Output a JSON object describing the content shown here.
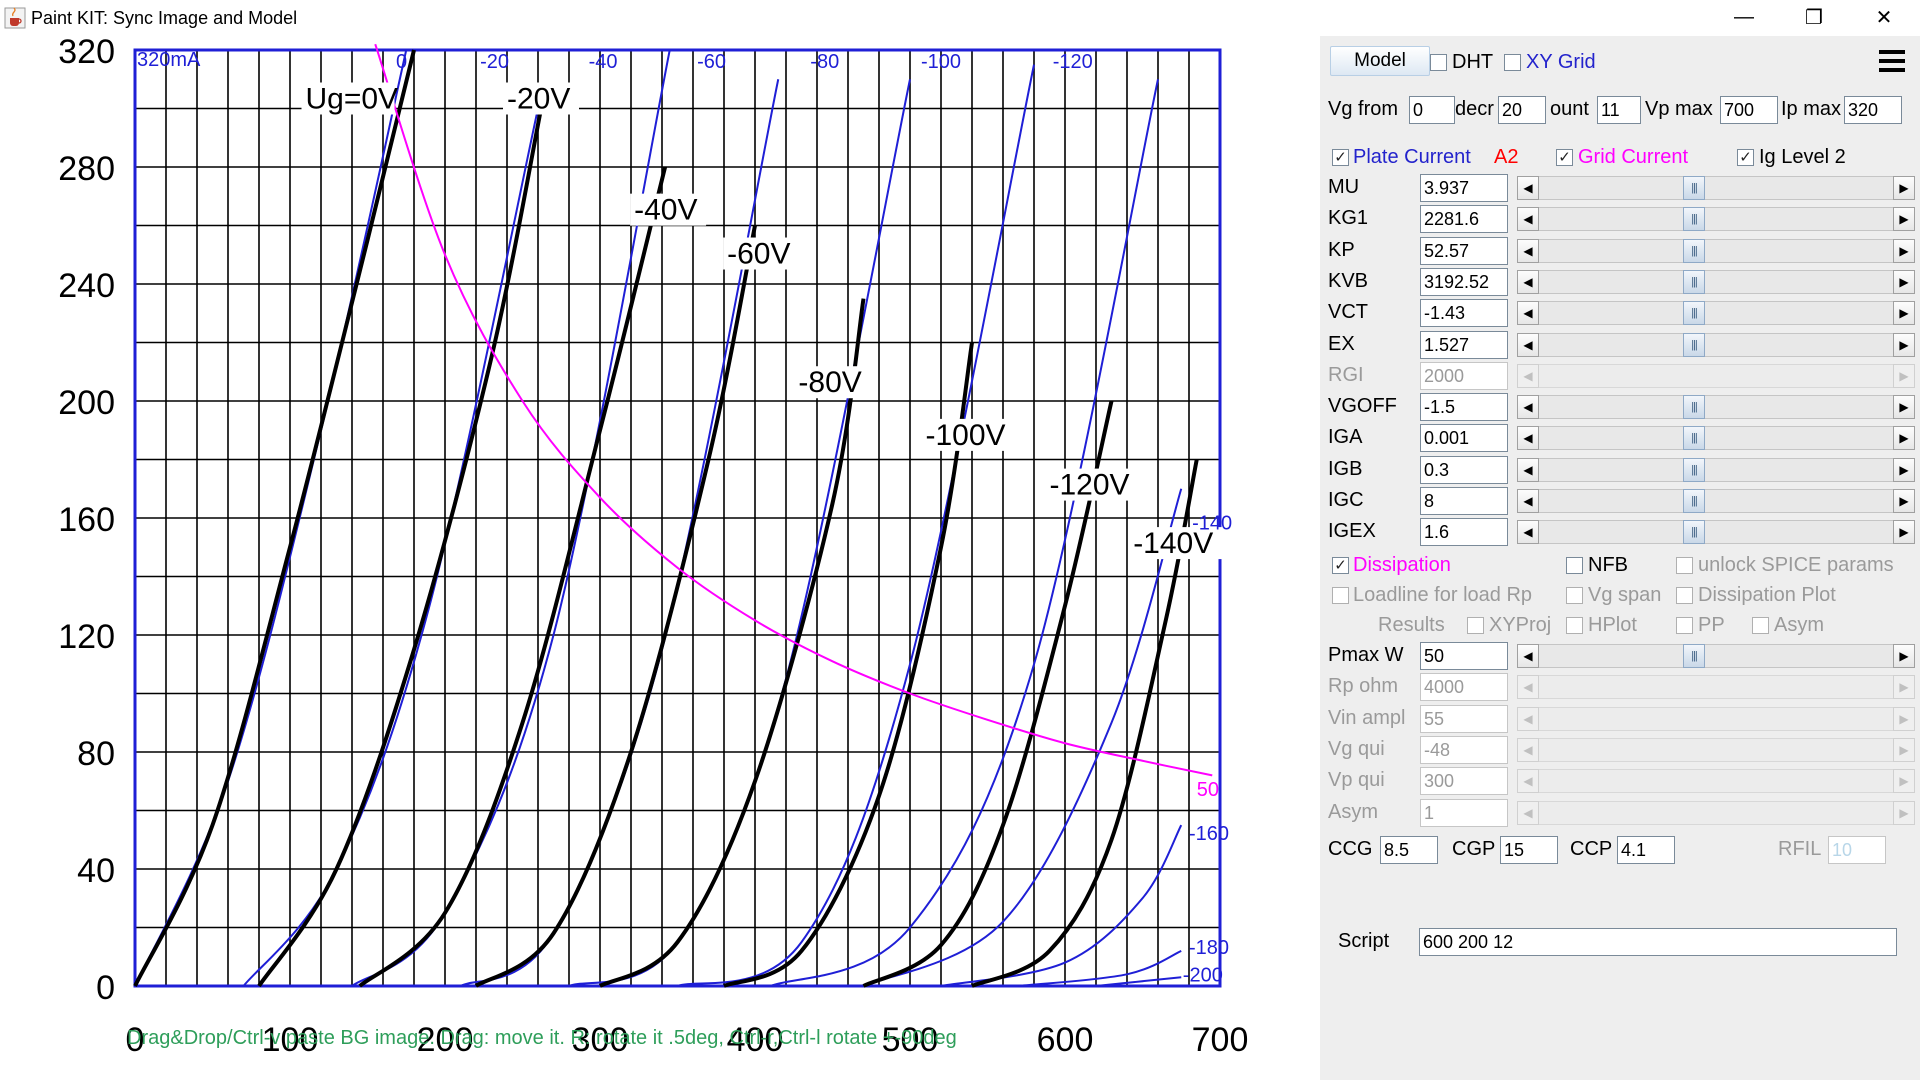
{
  "window": {
    "title": "Paint KIT: Sync Image and Model",
    "minimize": "—",
    "restore": "❐",
    "close": "✕"
  },
  "plot": {
    "corner_label": "320mA",
    "bottom_hint": "Drag&Drop/Ctrl-v paste BG image. Drag: move it. R: rotate it .5deg, Ctrl-r,Ctrl-l rotate +-90deg",
    "x_ticks": [
      "0",
      "100",
      "200",
      "300",
      "400",
      "500",
      "600",
      "700"
    ],
    "y_ticks": [
      "0",
      "40",
      "80",
      "120",
      "160",
      "200",
      "240",
      "280",
      "320"
    ],
    "top_labels": [
      "0",
      "-20",
      "-40",
      "-60",
      "-80",
      "-100",
      "-120"
    ],
    "curve_labels": [
      "Ug=0V",
      "-20V",
      "-40V",
      "-60V",
      "-80V",
      "-100V",
      "-120V",
      "-140V"
    ],
    "right_labels": [
      "-140",
      "50",
      "-160",
      "-180",
      "-200"
    ],
    "colors": {
      "grid": "#000000",
      "model": "#1f1fd6",
      "image": "#000000",
      "dissipation": "#ff00ff",
      "hint": "#2e9e5a"
    }
  },
  "chart_data": {
    "type": "line",
    "title": "",
    "xlabel": "",
    "ylabel": "",
    "xlim": [
      0,
      700
    ],
    "ylim": [
      0,
      320
    ],
    "series": [
      {
        "name": "Ug=0V",
        "vg": 0,
        "x": [
          0,
          50,
          100,
          150,
          180
        ],
        "y": [
          0,
          55,
          150,
          255,
          320
        ]
      },
      {
        "name": "-20V",
        "vg": -20,
        "x": [
          80,
          130,
          180,
          230,
          262
        ],
        "y": [
          0,
          40,
          115,
          215,
          300
        ]
      },
      {
        "name": "-40V",
        "vg": -40,
        "x": [
          145,
          200,
          250,
          300,
          342
        ],
        "y": [
          0,
          25,
          90,
          190,
          280
        ]
      },
      {
        "name": "-60V",
        "vg": -60,
        "x": [
          220,
          270,
          320,
          370,
          400
        ],
        "y": [
          0,
          18,
          80,
          180,
          260
        ]
      },
      {
        "name": "-80V",
        "vg": -80,
        "x": [
          300,
          350,
          400,
          450,
          470
        ],
        "y": [
          0,
          15,
          70,
          165,
          235
        ]
      },
      {
        "name": "-100V",
        "vg": -100,
        "x": [
          380,
          430,
          480,
          520,
          540
        ],
        "y": [
          0,
          12,
          65,
          150,
          220
        ]
      },
      {
        "name": "-120V",
        "vg": -120,
        "x": [
          470,
          520,
          560,
          600,
          630
        ],
        "y": [
          0,
          14,
          55,
          130,
          200
        ]
      },
      {
        "name": "-140V",
        "vg": -140,
        "x": [
          540,
          590,
          630,
          665,
          685
        ],
        "y": [
          0,
          12,
          50,
          125,
          180
        ]
      },
      {
        "name": "50",
        "x": [
          155,
          200,
          250,
          300,
          350,
          400,
          450,
          500,
          550,
          600,
          650,
          695
        ],
        "y": [
          322,
          250,
          200,
          167,
          143,
          125,
          111,
          100,
          91,
          83,
          77,
          72
        ]
      }
    ],
    "model_series": [
      {
        "vg": 0,
        "x": [
          0,
          60,
          120,
          175
        ],
        "y": [
          0,
          70,
          190,
          320
        ]
      },
      {
        "vg": -20,
        "x": [
          70,
          130,
          190,
          260
        ],
        "y": [
          0,
          40,
          130,
          300
        ]
      },
      {
        "vg": -40,
        "x": [
          140,
          200,
          270,
          345
        ],
        "y": [
          0,
          25,
          120,
          320
        ]
      },
      {
        "vg": -60,
        "x": [
          210,
          270,
          340,
          415
        ],
        "y": [
          0,
          18,
          115,
          310
        ]
      },
      {
        "vg": -80,
        "x": [
          280,
          350,
          420,
          500
        ],
        "y": [
          0,
          15,
          105,
          310
        ]
      },
      {
        "vg": -100,
        "x": [
          350,
          430,
          500,
          580
        ],
        "y": [
          0,
          15,
          110,
          315
        ]
      },
      {
        "vg": -120,
        "x": [
          410,
          500,
          580,
          660
        ],
        "y": [
          0,
          20,
          110,
          310
        ]
      },
      {
        "vg": -140,
        "x": [
          470,
          560,
          630,
          675
        ],
        "y": [
          0,
          22,
          90,
          170
        ]
      },
      {
        "vg": -160,
        "x": [
          520,
          600,
          650,
          675
        ],
        "y": [
          0,
          8,
          30,
          55
        ]
      },
      {
        "vg": -180,
        "x": [
          570,
          640,
          675
        ],
        "y": [
          0,
          4,
          12
        ]
      },
      {
        "vg": -200,
        "x": [
          620,
          675
        ],
        "y": [
          0,
          3
        ]
      }
    ]
  },
  "panel": {
    "model_button": "Model",
    "dht": "DHT",
    "xy_grid": "XY Grid",
    "vg_from_label": "Vg from",
    "vg_from": "0",
    "decr_label": "decr",
    "decr": "20",
    "count_label": "ount",
    "count": "11",
    "vp_max_label": "Vp max",
    "vp_max": "700",
    "ip_max_label": "Ip max",
    "ip_max": "320",
    "plate_current": "Plate Current",
    "a2": "A2",
    "grid_current": "Grid Current",
    "ig_level": "Ig Level 2",
    "params": [
      {
        "label": "MU",
        "value": "3.937"
      },
      {
        "label": "KG1",
        "value": "2281.6"
      },
      {
        "label": "KP",
        "value": "52.57"
      },
      {
        "label": "KVB",
        "value": "3192.52"
      },
      {
        "label": "VCT",
        "value": "-1.43"
      },
      {
        "label": "EX",
        "value": "1.527"
      },
      {
        "label": "RGI",
        "value": "2000"
      },
      {
        "label": "VGOFF",
        "value": "-1.5"
      },
      {
        "label": "IGA",
        "value": "0.001"
      },
      {
        "label": "IGB",
        "value": "0.3"
      },
      {
        "label": "IGC",
        "value": "8"
      },
      {
        "label": "IGEX",
        "value": "1.6"
      }
    ],
    "dissipation": "Dissipation",
    "nfb": "NFB",
    "unlock": "unlock SPICE params",
    "loadline": "Loadline for load Rp",
    "vg_span": "Vg span",
    "dissipation_plot": "Dissipation Plot",
    "results": "Results",
    "xyproj": "XYProj",
    "hplot": "HPlot",
    "pp": "PP",
    "asym_cb": "Asym",
    "load_params": [
      {
        "label": "Pmax W",
        "value": "50"
      },
      {
        "label": "Rp ohm",
        "value": "4000"
      },
      {
        "label": "Vin ampl",
        "value": "55"
      },
      {
        "label": "Vg qui",
        "value": "-48"
      },
      {
        "label": "Vp qui",
        "value": "300"
      },
      {
        "label": "Asym",
        "value": "1"
      }
    ],
    "ccg_label": "CCG",
    "ccg": "8.5",
    "cgp_label": "CGP",
    "cgp": "15",
    "ccp_label": "CCP",
    "ccp": "4.1",
    "rfil_label": "RFIL",
    "rfil": "10",
    "script_label": "Script",
    "script": "600 200 12"
  }
}
